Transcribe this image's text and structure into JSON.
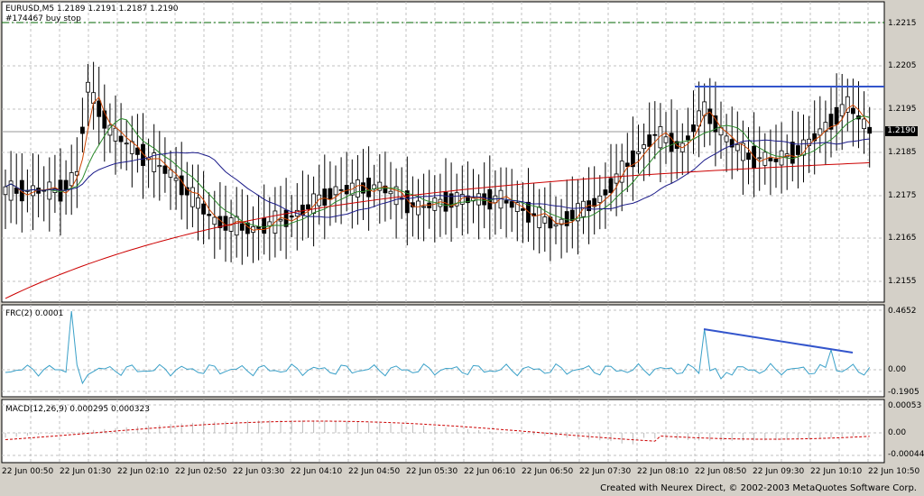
{
  "header": {
    "symbol_line": "EURUSD,M5  1.2189 1.2191 1.2187 1.2190",
    "order_label": "#174467 buy stop"
  },
  "price_axis": [
    "1.2215",
    "1.2205",
    "1.2195",
    "1.2185",
    "1.2175",
    "1.2165",
    "1.2155"
  ],
  "current_price": "1.2190",
  "frc": {
    "label": "FRC(2)  0.0001",
    "axis": [
      "0.4652",
      "0.00",
      "-0.1905"
    ]
  },
  "macd": {
    "label": "MACD(12,26,9)  0.000295  0.000323",
    "axis": [
      "0.00053",
      "0.00",
      "-0.00044"
    ]
  },
  "time_axis": [
    "22 Jun 00:50",
    "22 Jun 01:30",
    "22 Jun 02:10",
    "22 Jun 02:50",
    "22 Jun 03:30",
    "22 Jun 04:10",
    "22 Jun 04:50",
    "22 Jun 05:30",
    "22 Jun 06:10",
    "22 Jun 06:50",
    "22 Jun 07:30",
    "22 Jun 08:10",
    "22 Jun 08:50",
    "22 Jun 09:30",
    "22 Jun 10:10",
    "22 Jun 10:50"
  ],
  "footer": "Created with Neurex Direct, © 2002-2003 MetaQuotes Software Corp.",
  "colors": {
    "bg": "#ffffff",
    "grid": "#c0c0c0",
    "ma_fast": "#cc4400",
    "ma_mid": "#2a8a2a",
    "ma_slow": "#1c1c8a",
    "ma_long": "#cc0000",
    "frc": "#3aa0c8",
    "trend": "#3355cc",
    "buystop": "#006600"
  }
}
